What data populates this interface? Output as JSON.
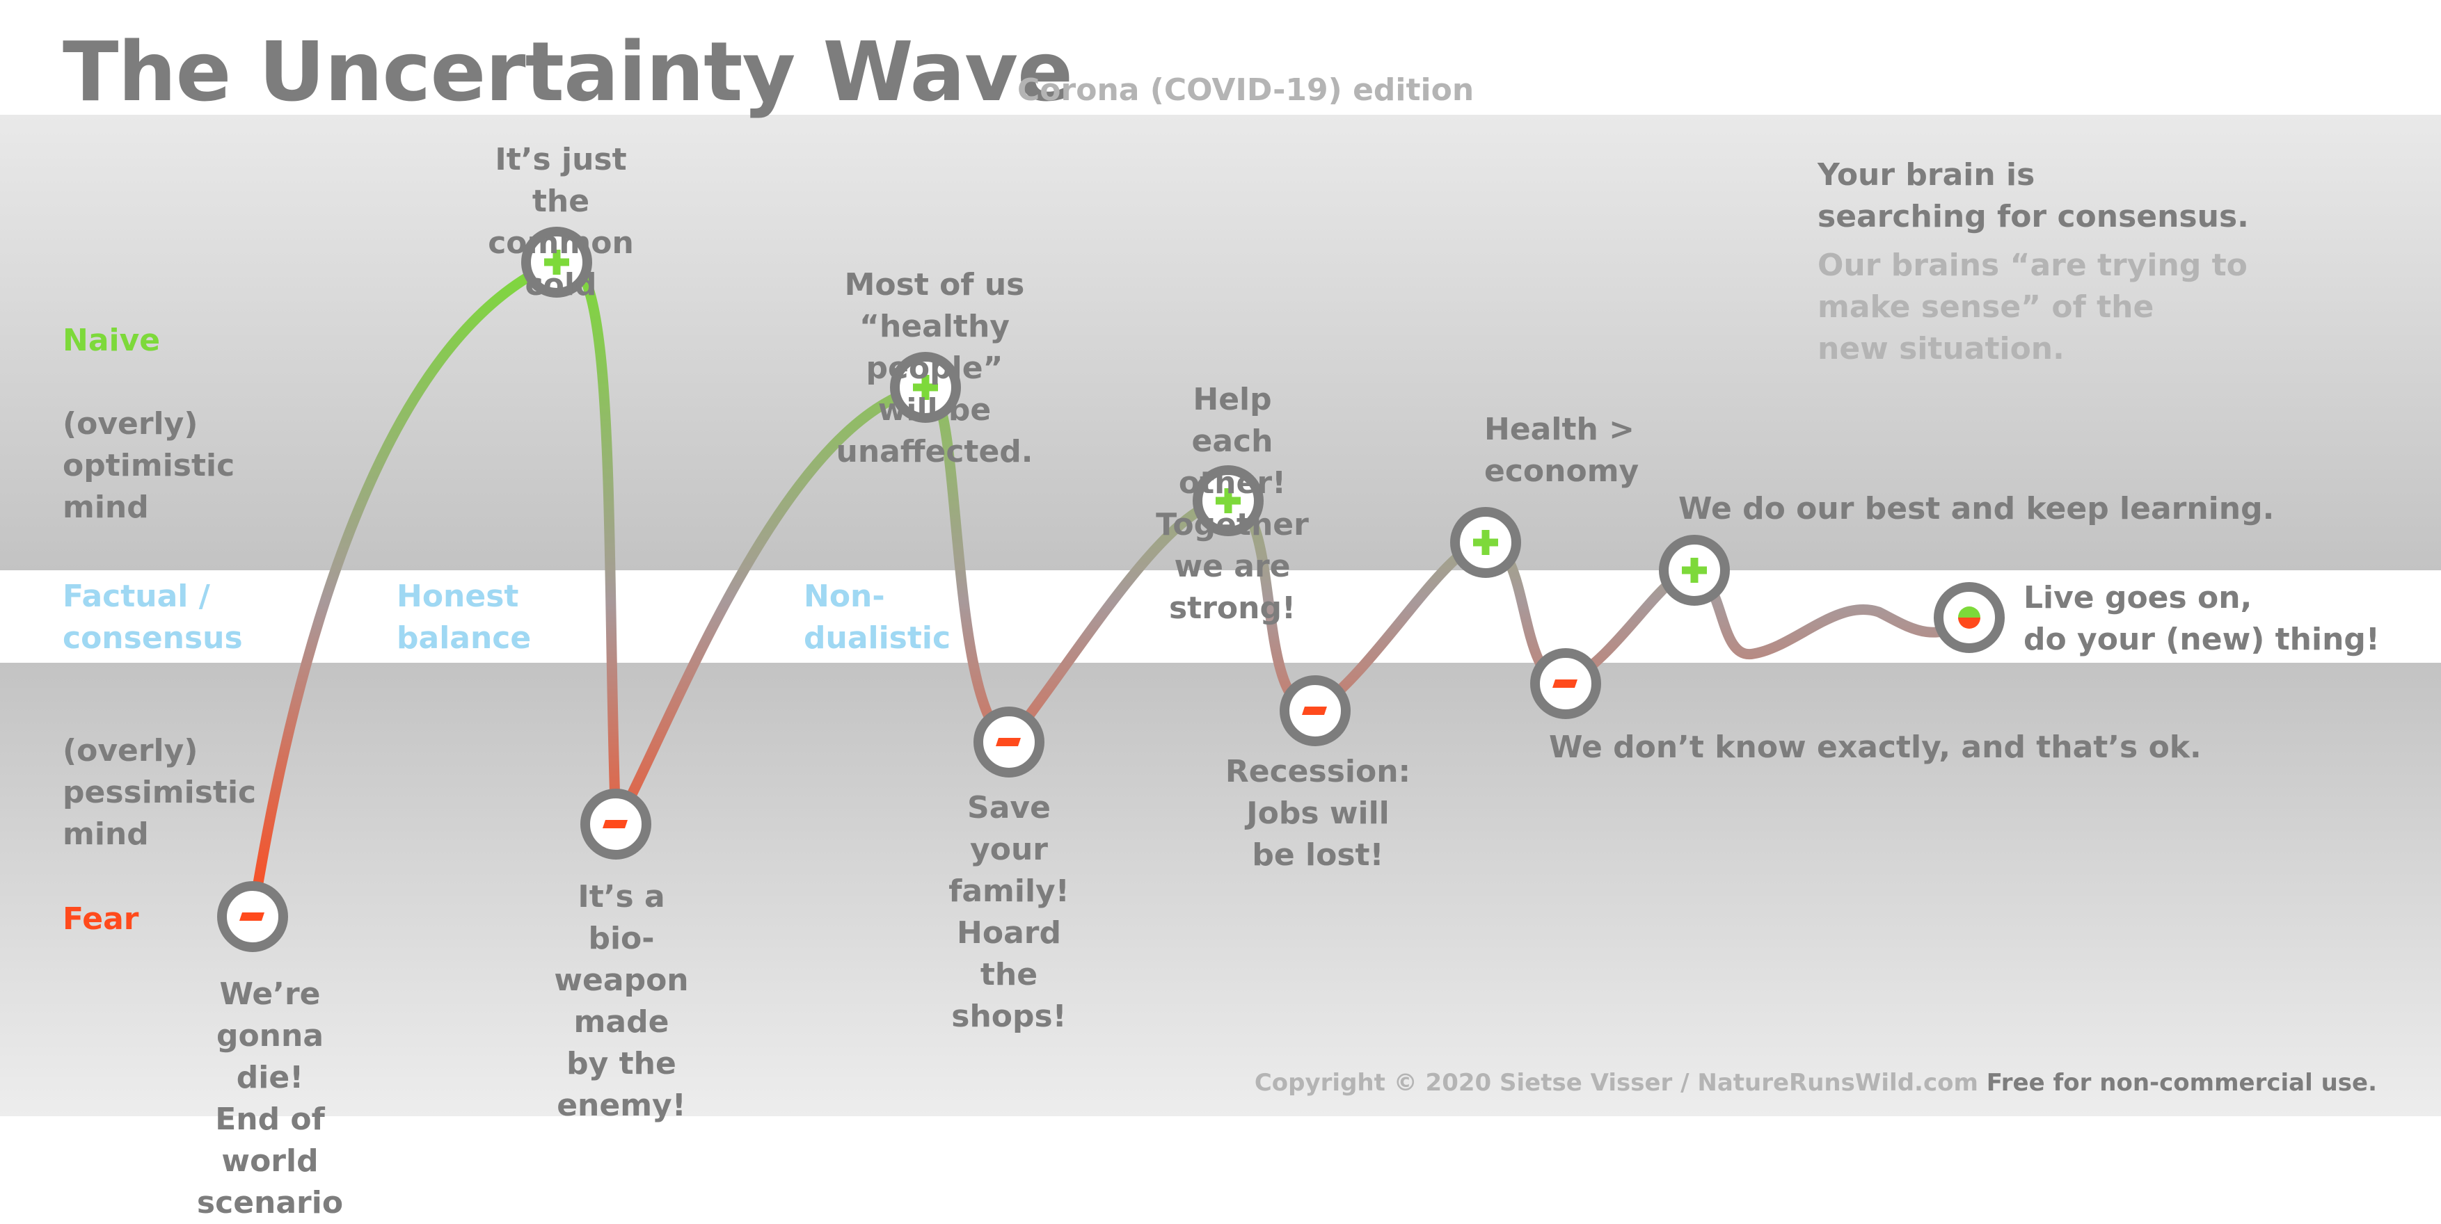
{
  "title": "The Uncertainty Wave",
  "subtitle": "Corona (COVID-19) edition",
  "colors": {
    "positive": "#7dd93a",
    "negative": "#ff4a1c",
    "factual": "#9fd8f3",
    "text": "#7d7d7d",
    "muted": "#b4b4b4"
  },
  "levels": {
    "naive": "Naive",
    "optimistic": "(overly)\noptimistic\nmind",
    "factual": "Factual /\nconsensus",
    "pessimistic": "(overly)\npessimistic\nmind",
    "fear": "Fear"
  },
  "balance_labels": [
    "Honest\nbalance",
    "Non-\ndualistic"
  ],
  "brain_note": {
    "main": "Your brain is\nsearching for consensus.",
    "sub": "Our brains “are trying to\nmake sense” of the\nnew situation."
  },
  "stages": [
    {
      "type": "negative",
      "label": "We’re gonna die!\nEnd of world scenario"
    },
    {
      "type": "positive",
      "label": "It’s just the\ncommon cold"
    },
    {
      "type": "negative",
      "label": "It’s a bio-weapon\nmade by the\nenemy!"
    },
    {
      "type": "positive",
      "label": "Most of us “healthy\npeople” will be unaffected."
    },
    {
      "type": "negative",
      "label": "Save your family!\nHoard the shops!"
    },
    {
      "type": "positive",
      "label": "Help each other!\nTogether we are strong!"
    },
    {
      "type": "negative",
      "label": "Recession:\nJobs will be lost!"
    },
    {
      "type": "positive",
      "label": "Health >\neconomy"
    },
    {
      "type": "negative",
      "label": "We don’t know exactly, and that’s ok."
    },
    {
      "type": "positive",
      "label": "We do our best and keep learning."
    },
    {
      "type": "balanced",
      "label": "Live goes on,\ndo your (new) thing!"
    }
  ],
  "copyright": {
    "credit": "Copyright © 2020 Sietse Visser / NatureRunsWild.com",
    "license": "Free for non-commercial use."
  }
}
